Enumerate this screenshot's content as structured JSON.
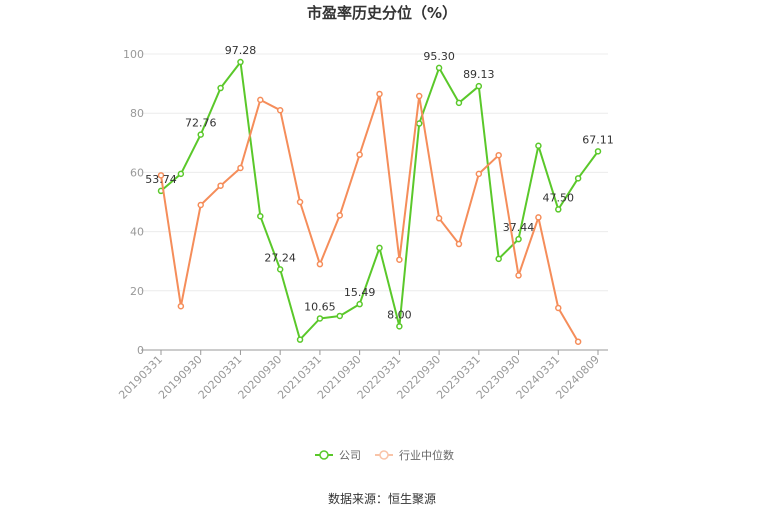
{
  "chart_data": {
    "type": "line",
    "title": "市盈率历史分位（%）",
    "x": [
      "20190331",
      "20190630",
      "20190930",
      "20191231",
      "20200331",
      "20200630",
      "20200930",
      "20201231",
      "20210331",
      "20210630",
      "20210930",
      "20211231",
      "20220331",
      "20220630",
      "20220930",
      "20221231",
      "20230331",
      "20230630",
      "20230930",
      "20231231",
      "20240331",
      "20240630",
      "20240809"
    ],
    "x_tick_labels": [
      "20190331",
      "20190930",
      "20200331",
      "20200930",
      "20210331",
      "20210930",
      "20220331",
      "20220930",
      "20230331",
      "20230930",
      "20240331",
      "20240809"
    ],
    "ylim": [
      0,
      100
    ],
    "yticks": [
      0,
      20,
      40,
      60,
      80,
      100
    ],
    "grid": true,
    "legend_position": "bottom",
    "series": [
      {
        "name": "公司",
        "color": "#5ac82a",
        "values": [
          53.74,
          59.5,
          72.76,
          88.5,
          97.28,
          45.2,
          27.24,
          3.5,
          10.65,
          11.5,
          15.49,
          34.5,
          8.0,
          76.5,
          95.3,
          83.5,
          89.13,
          30.8,
          37.44,
          69.0,
          47.5,
          58.0,
          67.11
        ],
        "labels": {
          "0": "53.74",
          "2": "72.76",
          "4": "97.28",
          "6": "27.24",
          "8": "10.65",
          "10": "15.49",
          "12": "8.00",
          "14": "95.30",
          "16": "89.13",
          "18": "37.44",
          "20": "47.50",
          "22": "67.11"
        }
      },
      {
        "name": "行业中位数",
        "color": "#f58d5a",
        "values": [
          59.0,
          14.8,
          49.0,
          55.5,
          61.5,
          84.5,
          81.0,
          50.0,
          29.0,
          45.5,
          66.0,
          86.5,
          30.5,
          85.8,
          44.5,
          35.8,
          59.5,
          65.8,
          25.2,
          44.8,
          14.2,
          2.8,
          null
        ]
      }
    ],
    "source": "数据来源：恒生聚源"
  }
}
